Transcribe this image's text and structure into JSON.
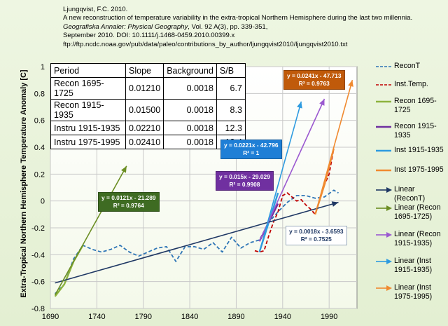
{
  "citation": {
    "line1": "Ljungqvist, F.C. 2010.",
    "line2": "A new reconstruction of temperature variability in the extra-tropical Northern Hemisphere during the last two millennia.",
    "line3_journal": "Geografiska Annaler: Physical Geography",
    "line3_rest": ", Vol. 92 A(3), pp. 339-351,",
    "line4": "September 2010. DOI: 10.1111/j.1468-0459.2010.00399.x",
    "line5": "ftp://ftp.ncdc.noaa.gov/pub/data/paleo/contributions_by_author/ljungqvist2010/ljungqvist2010.txt"
  },
  "stats_table": {
    "headers": [
      "Period",
      "Slope",
      "Background",
      "S/B"
    ],
    "rows": [
      [
        "Recon 1695-1725",
        "0.01210",
        "0.0018",
        "6.7"
      ],
      [
        "Recon 1915-1935",
        "0.01500",
        "0.0018",
        "8.3"
      ],
      [
        "Instru 1915-1935",
        "0.02210",
        "0.0018",
        "12.3"
      ],
      [
        "Instru 1975-1995",
        "0.02410",
        "0.0018",
        "13.4"
      ]
    ]
  },
  "equations": {
    "recon_1695": {
      "eq": "y = 0.0121x - 21.289",
      "r2": "R² = 0.9764",
      "color": "#3e6b22"
    },
    "recon_1915": {
      "eq": "y = 0.015x - 29.029",
      "r2": "R² = 0.9908",
      "color": "#7030a0"
    },
    "inst_1915": {
      "eq": "y = 0.0221x - 42.796",
      "r2": "R² = 1",
      "color": "#1f7fd6"
    },
    "inst_1975": {
      "eq": "y = 0.0241x - 47.713",
      "r2": "R² = 0.9763",
      "color": "#c05a0a"
    },
    "recont": {
      "eq": "y = 0.0018x - 3.6593",
      "r2": "R² = 0.7525",
      "color": "#1f3864"
    }
  },
  "legend": {
    "items": [
      {
        "label": "ReconT",
        "style": "dashed",
        "color": "#2e75b6"
      },
      {
        "label": "Inst.Temp.",
        "style": "dashed",
        "color": "#c00000"
      },
      {
        "label": "Recon 1695-1725",
        "style": "solid",
        "color": "#8db33f"
      },
      {
        "label": "Recon 1915-1935",
        "style": "solid",
        "color": "#7030a0"
      },
      {
        "label": "Inst 1915-1935",
        "style": "solid",
        "color": "#2e9be0"
      },
      {
        "label": "Inst 1975-1995",
        "style": "solid",
        "color": "#f08a30"
      },
      {
        "label": "Linear (ReconT)",
        "style": "arrow",
        "color": "#1f3864"
      },
      {
        "label": "Linear (Recon 1695-1725)",
        "style": "arrow",
        "color": "#6b8e23"
      },
      {
        "label": "Linear (Recon 1915-1935)",
        "style": "arrow",
        "color": "#9b59d0"
      },
      {
        "label": "Linear (Inst 1915-1935)",
        "style": "arrow",
        "color": "#2e9be0"
      },
      {
        "label": "Linear (Inst 1975-1995)",
        "style": "arrow",
        "color": "#f08a30"
      }
    ]
  },
  "chart_data": {
    "type": "line",
    "title": "",
    "xlabel": "",
    "ylabel": "Extra-Tropical Northern Hemisphere Temperature Anomaly [C]",
    "xlim": [
      1690,
      2020
    ],
    "ylim": [
      -0.8,
      1.0
    ],
    "xticks": [
      1690,
      1740,
      1790,
      1840,
      1890,
      1940,
      1990
    ],
    "yticks": [
      -0.8,
      -0.6,
      -0.4,
      -0.2,
      0,
      0.2,
      0.4,
      0.6,
      0.8,
      1
    ],
    "grid": true,
    "series": [
      {
        "name": "ReconT",
        "style": "dashed",
        "color": "#2e75b6",
        "x": [
          1695,
          1705,
          1715,
          1725,
          1735,
          1745,
          1755,
          1765,
          1775,
          1785,
          1795,
          1805,
          1815,
          1825,
          1835,
          1845,
          1855,
          1865,
          1875,
          1885,
          1895,
          1905,
          1915,
          1925,
          1935,
          1945,
          1955,
          1965,
          1975,
          1985,
          1995,
          2000
        ],
        "y": [
          -0.69,
          -0.62,
          -0.43,
          -0.33,
          -0.36,
          -0.38,
          -0.36,
          -0.33,
          -0.38,
          -0.41,
          -0.38,
          -0.35,
          -0.34,
          -0.45,
          -0.34,
          -0.34,
          -0.36,
          -0.31,
          -0.38,
          -0.27,
          -0.35,
          -0.31,
          -0.29,
          -0.16,
          -0.08,
          -0.01,
          0.04,
          0.04,
          0.02,
          0.03,
          0.08,
          0.06
        ]
      },
      {
        "name": "Inst.Temp.",
        "style": "dashed",
        "color": "#c00000",
        "x": [
          1910,
          1915,
          1920,
          1925,
          1930,
          1935,
          1940,
          1945,
          1950,
          1955,
          1960,
          1965,
          1970,
          1975,
          1980,
          1985,
          1990,
          1995
        ],
        "y": [
          -0.37,
          -0.38,
          -0.37,
          -0.26,
          -0.16,
          -0.08,
          0.04,
          0.06,
          0.03,
          0.0,
          0.01,
          -0.03,
          -0.06,
          -0.1,
          0.02,
          0.12,
          0.2,
          0.39
        ]
      },
      {
        "name": "Recon 1695-1725",
        "style": "solid",
        "color": "#8db33f",
        "x": [
          1695,
          1705,
          1715,
          1725
        ],
        "y": [
          -0.71,
          -0.62,
          -0.45,
          -0.33
        ]
      },
      {
        "name": "Recon 1915-1935",
        "style": "solid",
        "color": "#7030a0",
        "x": [
          1915,
          1925,
          1935
        ],
        "y": [
          -0.3,
          -0.16,
          -0.02
        ]
      },
      {
        "name": "Inst 1915-1935",
        "style": "solid",
        "color": "#2e9be0",
        "x": [
          1915,
          1925,
          1935
        ],
        "y": [
          -0.38,
          -0.16,
          0.06
        ]
      },
      {
        "name": "Inst 1975-1995",
        "style": "solid",
        "color": "#f08a30",
        "x": [
          1975,
          1985,
          1995
        ],
        "y": [
          -0.1,
          0.12,
          0.39
        ]
      },
      {
        "name": "Linear (ReconT)",
        "style": "arrow",
        "color": "#1f3864",
        "x": [
          1695,
          2000
        ],
        "y": [
          -0.61,
          -0.01
        ]
      },
      {
        "name": "Linear (Recon 1695-1725)",
        "style": "arrow",
        "color": "#6b8e23",
        "x": [
          1695,
          1772
        ],
        "y": [
          -0.7,
          0.26
        ]
      },
      {
        "name": "Linear (Recon 1915-1935)",
        "style": "arrow",
        "color": "#9b59d0",
        "x": [
          1915,
          1985
        ],
        "y": [
          -0.3,
          0.76
        ]
      },
      {
        "name": "Linear (Inst 1915-1935)",
        "style": "arrow",
        "color": "#2e9be0",
        "x": [
          1915,
          1960
        ],
        "y": [
          -0.38,
          0.74
        ]
      },
      {
        "name": "Linear (Inst 1975-1995)",
        "style": "arrow",
        "color": "#f08a30",
        "x": [
          1975,
          2015
        ],
        "y": [
          -0.1,
          0.9
        ]
      }
    ]
  }
}
